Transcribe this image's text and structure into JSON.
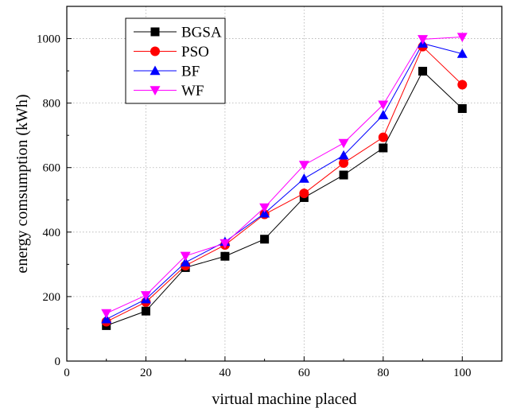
{
  "chart_data": {
    "type": "line",
    "xlabel": "virtual machine placed",
    "ylabel": "energy comsumption (kWh)",
    "xlim": [
      0,
      110
    ],
    "ylim": [
      0,
      1100
    ],
    "x_ticks": [
      0,
      20,
      40,
      60,
      80,
      100
    ],
    "y_ticks": [
      0,
      200,
      400,
      600,
      800,
      1000
    ],
    "grid": true,
    "legend_position": "top-left",
    "x": [
      10,
      20,
      30,
      40,
      50,
      60,
      70,
      80,
      90,
      100
    ],
    "series": [
      {
        "name": "BGSA",
        "color": "#000000",
        "marker": "square",
        "values": [
          110,
          155,
          290,
          325,
          378,
          507,
          577,
          661,
          899,
          783
        ]
      },
      {
        "name": "PSO",
        "color": "#ff0000",
        "marker": "circle",
        "values": [
          122,
          183,
          296,
          360,
          455,
          520,
          614,
          694,
          975,
          857
        ]
      },
      {
        "name": "BF",
        "color": "#0000ff",
        "marker": "triangle-up",
        "values": [
          130,
          192,
          306,
          370,
          458,
          566,
          638,
          763,
          985,
          953
        ]
      },
      {
        "name": "WF",
        "color": "#ff00ff",
        "marker": "triangle-down",
        "values": [
          148,
          204,
          326,
          365,
          476,
          608,
          676,
          795,
          998,
          1005
        ]
      }
    ]
  }
}
